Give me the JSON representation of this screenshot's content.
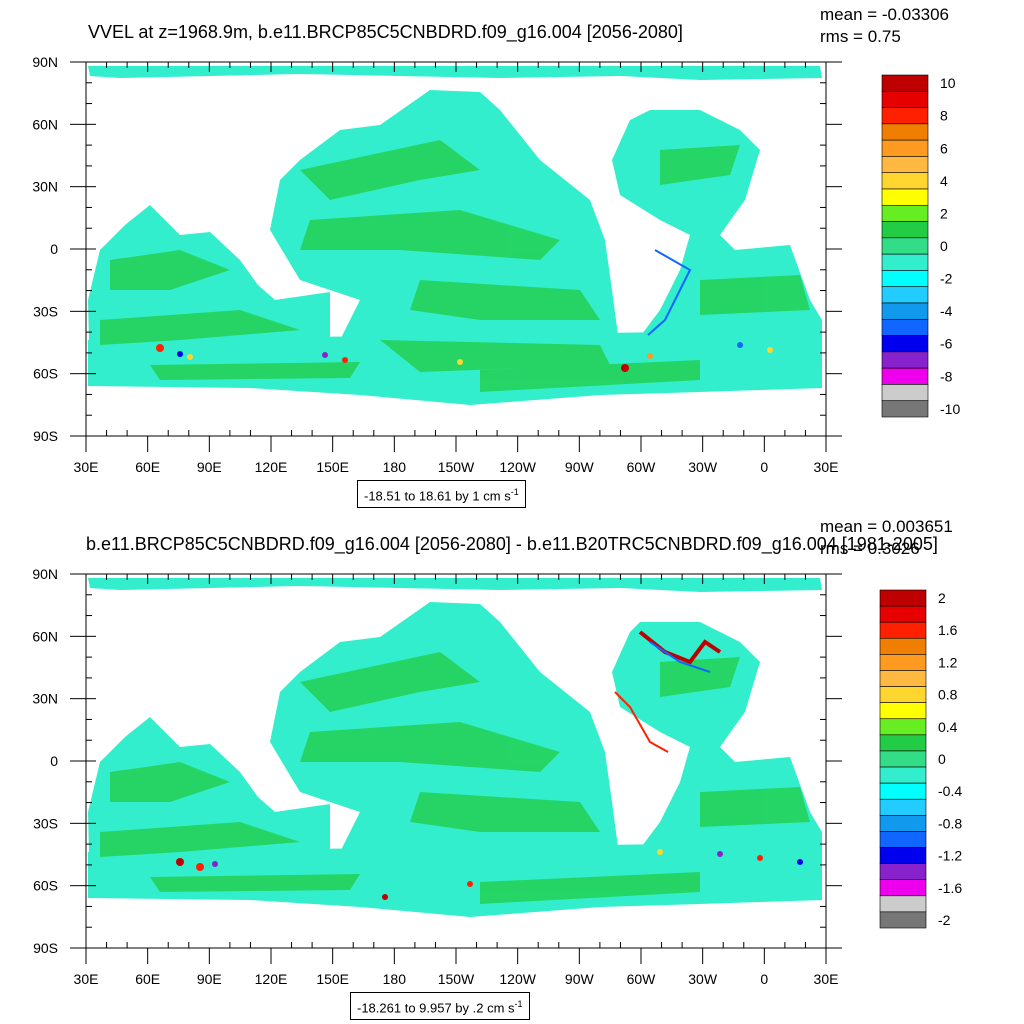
{
  "panels": [
    {
      "title": "VVEL at z=1968.9m, b.e11.BRCP85C5CNBDRD.f09_g16.004 [2056-2080]",
      "mean": "mean = -0.03306",
      "rms": "rms = 0.75",
      "range": "-18.51 to 18.61 by 1 cm s",
      "range_unit_exp": "-1",
      "colorbar_labels": [
        "10",
        "8",
        "6",
        "4",
        "2",
        "0",
        "-2",
        "-4",
        "-6",
        "-8",
        "-10"
      ]
    },
    {
      "title": "b.e11.BRCP85C5CNBDRD.f09_g16.004 [2056-2080] - b.e11.B20TRC5CNBDRD.f09_g16.004 [1981-2005]",
      "mean": "mean = 0.003651",
      "rms": "rms = 0.3026",
      "range": "-18.261 to 9.957 by .2 cm s",
      "range_unit_exp": "-1",
      "colorbar_labels": [
        "2",
        "1.6",
        "1.2",
        "0.8",
        "0.4",
        "0",
        "-0.4",
        "-0.8",
        "-1.2",
        "-1.6",
        "-2"
      ]
    }
  ],
  "lat_labels": [
    "90N",
    "60N",
    "30N",
    "0",
    "30S",
    "60S",
    "90S"
  ],
  "lon_labels": [
    "30E",
    "60E",
    "90E",
    "120E",
    "150E",
    "180",
    "150W",
    "120W",
    "90W",
    "60W",
    "30W",
    "0",
    "30E"
  ],
  "colorbar_colors": [
    "#bf0000",
    "#e60000",
    "#ff2000",
    "#f07e00",
    "#ff9a20",
    "#ffb840",
    "#ffd630",
    "#ffff00",
    "#66ee22",
    "#22cc44",
    "#33dd88",
    "#33eecc",
    "#00ffff",
    "#22ccff",
    "#1199ee",
    "#1166ff",
    "#0000ee",
    "#8822cc",
    "#ee00ee",
    "#cccccc",
    "#777777"
  ],
  "colors": {
    "ocean": "#33eecc",
    "ocean_green": "#22cc44",
    "land": "#ffffff"
  }
}
